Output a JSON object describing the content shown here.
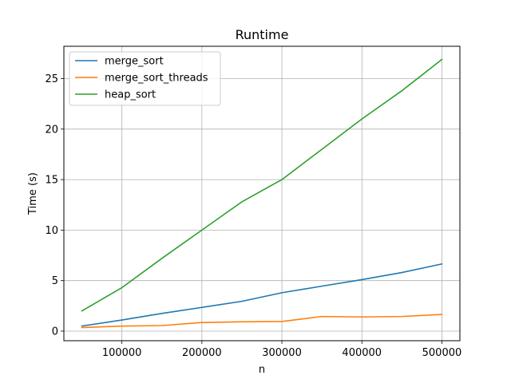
{
  "chart_data": {
    "type": "line",
    "title": "Runtime",
    "xlabel": "n",
    "ylabel": "Time (s)",
    "xlim": [
      27500,
      522500
    ],
    "ylim": [
      -0.95,
      28.2
    ],
    "xticks": [
      100000,
      200000,
      300000,
      400000,
      500000
    ],
    "yticks": [
      0,
      5,
      10,
      15,
      20,
      25
    ],
    "grid": true,
    "legend_position": "top-left",
    "x": [
      50000,
      100000,
      150000,
      200000,
      250000,
      300000,
      350000,
      400000,
      450000,
      500000
    ],
    "series": [
      {
        "name": "merge_sort",
        "color": "#1f77b4",
        "values": [
          0.5,
          1.1,
          1.75,
          2.35,
          2.95,
          3.8,
          4.45,
          5.1,
          5.8,
          6.65
        ]
      },
      {
        "name": "merge_sort_threads",
        "color": "#ff7f0e",
        "values": [
          0.35,
          0.5,
          0.55,
          0.85,
          0.92,
          0.95,
          1.45,
          1.4,
          1.45,
          1.65
        ]
      },
      {
        "name": "heap_sort",
        "color": "#2ca02c",
        "values": [
          2.0,
          4.3,
          7.2,
          10.0,
          12.8,
          15.0,
          18.0,
          21.0,
          23.8,
          26.9
        ]
      }
    ]
  }
}
